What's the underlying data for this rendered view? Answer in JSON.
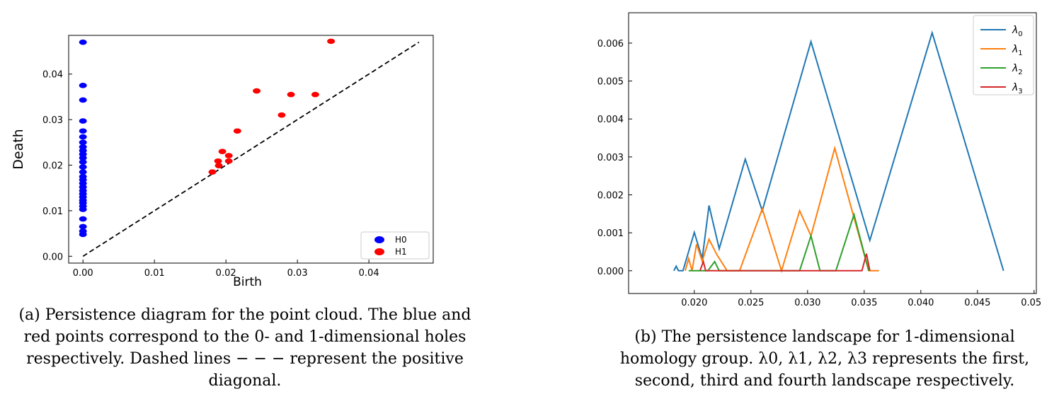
{
  "chart_data": [
    {
      "type": "scatter",
      "xlabel": "Birth",
      "ylabel": "Death",
      "xlim": [
        -0.002,
        0.049
      ],
      "ylim": [
        -0.0015,
        0.0485
      ],
      "xticks": [
        "0.00",
        "0.01",
        "0.02",
        "0.03",
        "0.04"
      ],
      "xtick_values": [
        0,
        0.01,
        0.02,
        0.03,
        0.04
      ],
      "yticks": [
        "0.00",
        "0.01",
        "0.02",
        "0.03",
        "0.04"
      ],
      "ytick_values": [
        0,
        0.01,
        0.02,
        0.03,
        0.04
      ],
      "legend_position": "bottom-right",
      "diagonal": {
        "from": [
          0,
          0
        ],
        "to": [
          0.047,
          0.047
        ],
        "style": "dashed",
        "color": "#000000"
      },
      "series": [
        {
          "name": "H0",
          "color": "#0000ff",
          "points": [
            [
              0,
              0.047
            ],
            [
              0,
              0.0375
            ],
            [
              0,
              0.0343
            ],
            [
              0,
              0.0297
            ],
            [
              0,
              0.0275
            ],
            [
              0,
              0.0262
            ],
            [
              0,
              0.025
            ],
            [
              0,
              0.024
            ],
            [
              0,
              0.0232
            ],
            [
              0,
              0.0224
            ],
            [
              0,
              0.0216
            ],
            [
              0,
              0.0207
            ],
            [
              0,
              0.0196
            ],
            [
              0,
              0.0185
            ],
            [
              0,
              0.0175
            ],
            [
              0,
              0.0168
            ],
            [
              0,
              0.016
            ],
            [
              0,
              0.0152
            ],
            [
              0,
              0.0144
            ],
            [
              0,
              0.0137
            ],
            [
              0,
              0.013
            ],
            [
              0,
              0.0123
            ],
            [
              0,
              0.0117
            ],
            [
              0,
              0.011
            ],
            [
              0,
              0.0103
            ],
            [
              0,
              0.0082
            ],
            [
              0,
              0.0065
            ],
            [
              0,
              0.0055
            ],
            [
              0,
              0.0048
            ]
          ]
        },
        {
          "name": "H1",
          "color": "#ff0000",
          "points": [
            [
              0.0347,
              0.0472
            ],
            [
              0.0243,
              0.0363
            ],
            [
              0.0291,
              0.0355
            ],
            [
              0.0325,
              0.0355
            ],
            [
              0.0278,
              0.031
            ],
            [
              0.0216,
              0.0275
            ],
            [
              0.0195,
              0.023
            ],
            [
              0.0204,
              0.0221
            ],
            [
              0.0189,
              0.0209
            ],
            [
              0.0204,
              0.0209
            ],
            [
              0.019,
              0.0199
            ],
            [
              0.0181,
              0.0185
            ]
          ]
        }
      ]
    },
    {
      "type": "line",
      "xlim": [
        0.0142,
        0.0502
      ],
      "ylim": [
        -0.0006,
        0.0068
      ],
      "xticks": [
        "0.020",
        "0.025",
        "0.030",
        "0.035",
        "0.040",
        "0.045",
        "0.050"
      ],
      "xtick_values": [
        0.02,
        0.025,
        0.03,
        0.035,
        0.04,
        0.045,
        0.05
      ],
      "yticks": [
        "0.000",
        "0.001",
        "0.002",
        "0.003",
        "0.004",
        "0.005",
        "0.006"
      ],
      "ytick_values": [
        0,
        0.001,
        0.002,
        0.003,
        0.004,
        0.005,
        0.006
      ],
      "legend_position": "top-right",
      "series": [
        {
          "name": "λ0",
          "base": "λ",
          "sub": "0",
          "color": "#1f77b4",
          "points": [
            [
              0.0182,
              0.0
            ],
            [
              0.0184,
              0.00012
            ],
            [
              0.0186,
              0.0
            ],
            [
              0.019,
              0.0
            ],
            [
              0.02,
              0.00101
            ],
            [
              0.0207,
              0.00032
            ],
            [
              0.0213,
              0.00172
            ],
            [
              0.0222,
              0.00058
            ],
            [
              0.0245,
              0.00294
            ],
            [
              0.026,
              0.00158
            ],
            [
              0.0303,
              0.00604
            ],
            [
              0.0355,
              0.0008
            ],
            [
              0.041,
              0.00627
            ],
            [
              0.0473,
              0.0
            ]
          ]
        },
        {
          "name": "λ1",
          "base": "λ",
          "sub": "1",
          "color": "#ff7f0e",
          "points": [
            [
              0.0192,
              0.0
            ],
            [
              0.0195,
              0.00032
            ],
            [
              0.0198,
              0.0
            ],
            [
              0.0202,
              0.0007
            ],
            [
              0.0207,
              0.00025
            ],
            [
              0.0213,
              0.00083
            ],
            [
              0.022,
              0.00042
            ],
            [
              0.0229,
              0.0
            ],
            [
              0.024,
              0.0
            ],
            [
              0.026,
              0.00163
            ],
            [
              0.0277,
              0.0
            ],
            [
              0.0293,
              0.00158
            ],
            [
              0.0303,
              0.00092
            ],
            [
              0.0324,
              0.00323
            ],
            [
              0.0354,
              0.0
            ],
            [
              0.0363,
              0.0
            ]
          ]
        },
        {
          "name": "λ2",
          "base": "λ",
          "sub": "2",
          "color": "#2ca02c",
          "points": [
            [
              0.0195,
              0.0
            ],
            [
              0.0212,
              0.0
            ],
            [
              0.0218,
              0.00024
            ],
            [
              0.0222,
              0.0
            ],
            [
              0.0293,
              0.0
            ],
            [
              0.0303,
              0.00092
            ],
            [
              0.0311,
              0.0
            ],
            [
              0.0325,
              0.0
            ],
            [
              0.0341,
              0.00148
            ],
            [
              0.0354,
              0.0
            ]
          ]
        },
        {
          "name": "λ3",
          "base": "λ",
          "sub": "3",
          "color": "#d62728",
          "points": [
            [
              0.0205,
              0.0
            ],
            [
              0.0208,
              0.00024
            ],
            [
              0.021,
              0.0
            ],
            [
              0.0348,
              0.0
            ],
            [
              0.0352,
              0.00045
            ],
            [
              0.0355,
              0.0
            ]
          ]
        }
      ]
    }
  ],
  "captions": {
    "a": "(a) Persistence diagram for the point cloud. The blue and red points correspond to the 0- and 1-dimensional holes respectively. Dashed lines − − − represent the positive diagonal.",
    "b": "(b) The persistence landscape for 1-dimensional homology group. λ0, λ1, λ2, λ3 represents the first, second, third and fourth landscape respectively."
  }
}
